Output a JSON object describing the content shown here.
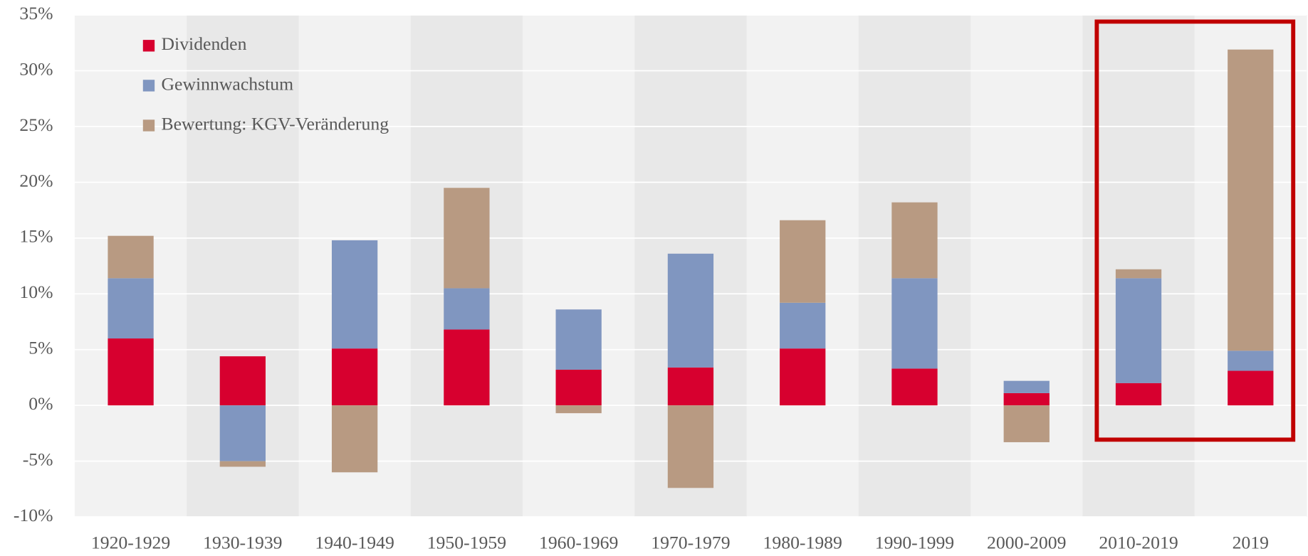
{
  "chart_data": {
    "type": "stacked_bar",
    "categories": [
      "1920-1929",
      "1930-1939",
      "1940-1949",
      "1950-1959",
      "1960-1969",
      "1970-1979",
      "1980-1989",
      "1990-1999",
      "2000-2009",
      "2010-2019",
      "2019"
    ],
    "series": [
      {
        "name": "Dividenden",
        "color": "#d7002f",
        "values": [
          6.0,
          4.4,
          5.1,
          6.8,
          3.2,
          3.4,
          5.1,
          3.3,
          1.1,
          2.0,
          3.1
        ]
      },
      {
        "name": "Gewinnwachstum",
        "color": "#8096c0",
        "values": [
          5.4,
          -5.0,
          9.7,
          3.7,
          5.4,
          10.2,
          4.1,
          8.1,
          1.1,
          9.4,
          1.8
        ]
      },
      {
        "name": "Bewertung: KGV-Veränderung",
        "color": "#b89a82",
        "values": [
          3.8,
          -0.5,
          -6.0,
          9.0,
          -0.7,
          -7.4,
          7.4,
          6.8,
          -3.3,
          0.8,
          27.0
        ]
      }
    ],
    "ylim": [
      -10,
      35
    ],
    "yticks": [
      {
        "value": -10,
        "label": "-10%"
      },
      {
        "value": -5,
        "label": "-5%"
      },
      {
        "value": 0,
        "label": "0%"
      },
      {
        "value": 5,
        "label": "5%"
      },
      {
        "value": 10,
        "label": "10%"
      },
      {
        "value": 15,
        "label": "15%"
      },
      {
        "value": 20,
        "label": "20%"
      },
      {
        "value": 25,
        "label": "25%"
      },
      {
        "value": 30,
        "label": "30%"
      },
      {
        "value": 35,
        "label": "35%"
      }
    ],
    "grid": true,
    "legend": "top-left"
  }
}
